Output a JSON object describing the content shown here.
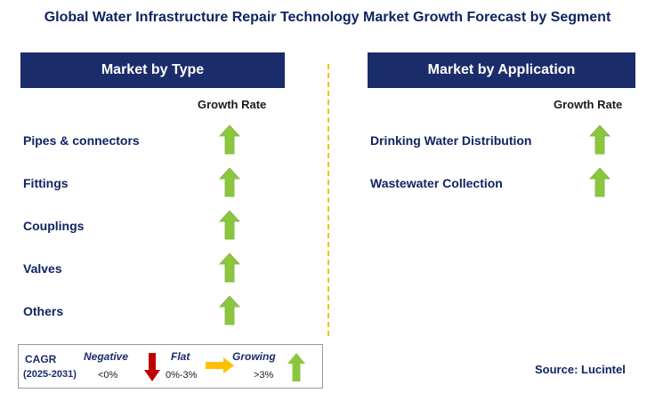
{
  "title": "Global Water Infrastructure Repair Technology Market Growth Forecast by Segment",
  "left_panel": {
    "header": "Market by Type",
    "growth_label": "Growth Rate",
    "items": [
      {
        "label": "Pipes & connectors",
        "trend": "growing"
      },
      {
        "label": "Fittings",
        "trend": "growing"
      },
      {
        "label": "Couplings",
        "trend": "growing"
      },
      {
        "label": "Valves",
        "trend": "growing"
      },
      {
        "label": "Others",
        "trend": "growing"
      }
    ]
  },
  "right_panel": {
    "header": "Market by Application",
    "growth_label": "Growth Rate",
    "items": [
      {
        "label": "Drinking Water Distribution",
        "trend": "growing"
      },
      {
        "label": "Wastewater Collection",
        "trend": "growing"
      }
    ]
  },
  "legend": {
    "cagr_label": "CAGR",
    "period": "(2025-2031)",
    "negative_label": "Negative",
    "negative_range": "<0%",
    "flat_label": "Flat",
    "flat_range": "0%-3%",
    "growing_label": "Growing",
    "growing_range": ">3%"
  },
  "source": "Source: Lucintel",
  "colors": {
    "header_bg": "#1b2c6b",
    "text_navy": "#0f2462",
    "arrow_green": "#8cc63f",
    "arrow_red": "#c00000",
    "arrow_yellow": "#ffc000",
    "divider": "#f2c200"
  }
}
